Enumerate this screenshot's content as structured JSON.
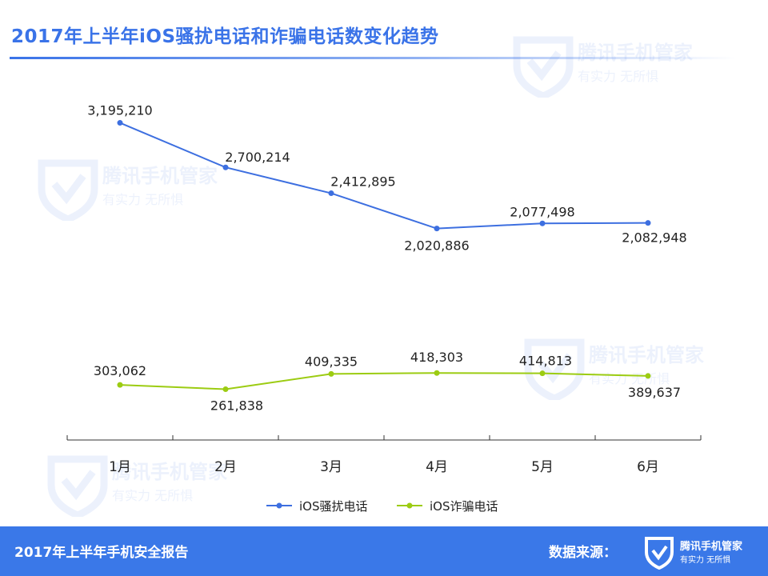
{
  "header": {
    "title": "2017年上半年iOS骚扰电话和诈骗电话数变化趋势"
  },
  "footer": {
    "report_title": "2017年上半年手机安全报告",
    "source_label": "数据来源：",
    "logo_name": "腾讯手机管家",
    "logo_slogan": "有实力  无所惧"
  },
  "watermark": {
    "name": "腾讯手机管家",
    "slogan": "有实力  无所惧"
  },
  "colors": {
    "harass": "#3d6fe0",
    "fraud": "#9ccc12",
    "accent": "#3a78e8"
  },
  "chart_data": {
    "type": "line",
    "title": "2017年上半年iOS骚扰电话和诈骗电话数变化趋势",
    "categories": [
      "1月",
      "2月",
      "3月",
      "4月",
      "5月",
      "6月"
    ],
    "series": [
      {
        "name": "iOS骚扰电话",
        "values": [
          3195210,
          2700214,
          2412895,
          2020886,
          2077498,
          2082948
        ],
        "labels": [
          "3,195,210",
          "2,700,214",
          "2,412,895",
          "2,020,886",
          "2,077,498",
          "2,082,948"
        ]
      },
      {
        "name": "iOS诈骗电话",
        "values": [
          303062,
          261838,
          409335,
          418303,
          414813,
          389637
        ],
        "labels": [
          "303,062",
          "261,838",
          "409,335",
          "418,303",
          "414,813",
          "389,637"
        ]
      }
    ],
    "legend_position": "bottom",
    "grid": false
  }
}
